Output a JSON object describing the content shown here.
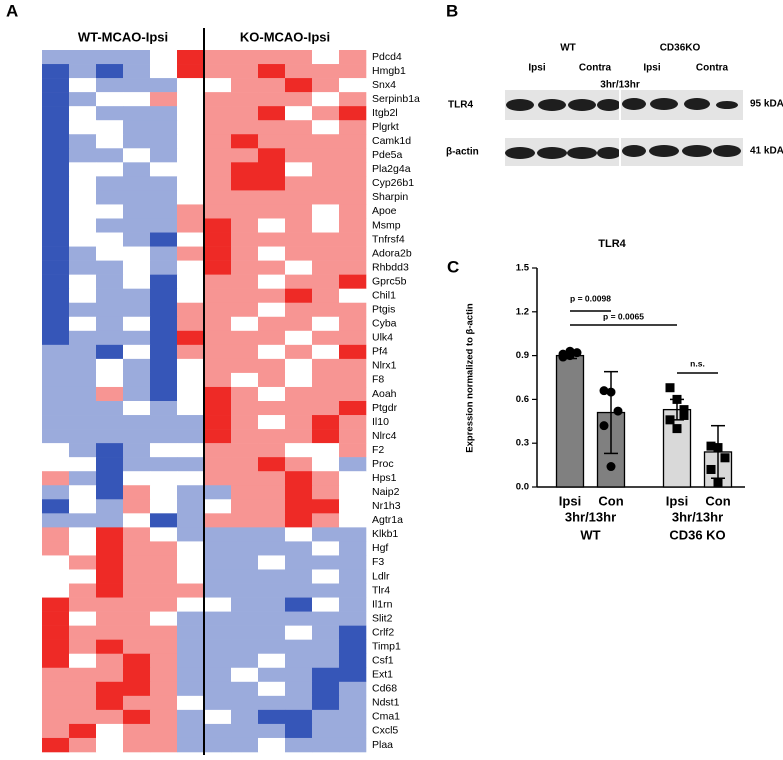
{
  "panels": {
    "a": "A",
    "b": "B",
    "c": "C"
  },
  "blot": {
    "groups": [
      "WT",
      "CD36KO"
    ],
    "lanes": [
      "Ipsi",
      "Contra",
      "Ipsi",
      "Contra"
    ],
    "time": "3hr/13hr",
    "rows": [
      {
        "name": "TLR4",
        "size": "95 kDA"
      },
      {
        "name": "β-actin",
        "size": "41 kDA"
      }
    ]
  },
  "chart_data": [
    {
      "type": "heatmap",
      "column_groups": [
        "WT-MCAO-Ipsi",
        "KO-MCAO-Ipsi"
      ],
      "zlim": [
        -2,
        2
      ],
      "colors": {
        "low": "#3656b8",
        "mid": "#ffffff",
        "high": "#ee2a26"
      },
      "rows": [
        "Pdcd4",
        "Hmgb1",
        "Snx4",
        "Serpinb1a",
        "Itgb2l",
        "Plgrkt",
        "Camk1d",
        "Pde5a",
        "Pla2g4a",
        "Cyp26b1",
        "Sharpin",
        "Apoe",
        "Msmp",
        "Tnfrsf4",
        "Adora2b",
        "Rhbdd3",
        "Gprc5b",
        "Chil1",
        "Ptgis",
        "Cyba",
        "Ulk4",
        "Pf4",
        "Nlrx1",
        "F8",
        "Aoah",
        "Ptgdr",
        "Il10",
        "Nlrc4",
        "F2",
        "Proc",
        "Hps1",
        "Naip2",
        "Nr1h3",
        "Agtr1a",
        "Klkb1",
        "Hgf",
        "F3",
        "Ldlr",
        "Tlr4",
        "Il1rn",
        "Slit2",
        "Crlf2",
        "Timp1",
        "Csf1",
        "Ext1",
        "Cd68",
        "Ndst1",
        "Cma1",
        "Cxcl5",
        "Plaa"
      ],
      "values": [
        [
          -1,
          -1,
          -1,
          -1,
          0,
          2,
          1,
          1,
          1,
          1,
          0,
          1
        ],
        [
          -2,
          -1,
          -2,
          -1,
          0,
          2,
          1,
          1,
          2,
          1,
          1,
          1
        ],
        [
          -2,
          0,
          -1,
          -1,
          -1,
          0,
          0,
          1,
          1,
          2,
          1,
          0
        ],
        [
          -2,
          -1,
          0,
          0,
          1,
          0,
          1,
          1,
          1,
          1,
          0,
          1
        ],
        [
          -2,
          0,
          -1,
          -1,
          -1,
          0,
          1,
          1,
          2,
          0,
          1,
          2
        ],
        [
          -2,
          0,
          0,
          -1,
          -1,
          0,
          1,
          1,
          1,
          1,
          0,
          1
        ],
        [
          -2,
          -1,
          0,
          -1,
          -1,
          0,
          1,
          2,
          1,
          1,
          1,
          1
        ],
        [
          -2,
          -1,
          -1,
          0,
          -1,
          0,
          1,
          1,
          2,
          1,
          1,
          1
        ],
        [
          -2,
          0,
          0,
          -1,
          0,
          0,
          1,
          2,
          2,
          0,
          1,
          1
        ],
        [
          -2,
          0,
          -1,
          -1,
          -1,
          0,
          1,
          2,
          2,
          1,
          1,
          1
        ],
        [
          -2,
          0,
          -1,
          -1,
          -1,
          0,
          1,
          1,
          1,
          1,
          1,
          1
        ],
        [
          -2,
          0,
          0,
          -1,
          -1,
          1,
          1,
          1,
          1,
          1,
          0,
          1
        ],
        [
          -2,
          0,
          -1,
          -1,
          -1,
          1,
          2,
          1,
          0,
          1,
          0,
          1
        ],
        [
          -2,
          0,
          0,
          -1,
          -2,
          0,
          2,
          1,
          1,
          1,
          1,
          1
        ],
        [
          -2,
          -1,
          0,
          0,
          -1,
          1,
          2,
          1,
          0,
          1,
          1,
          1
        ],
        [
          -2,
          -1,
          -1,
          0,
          -1,
          0,
          2,
          1,
          1,
          0,
          1,
          1
        ],
        [
          -2,
          0,
          -1,
          0,
          -2,
          0,
          1,
          1,
          0,
          1,
          1,
          2
        ],
        [
          -2,
          0,
          -1,
          -1,
          -2,
          0,
          1,
          1,
          1,
          2,
          1,
          0
        ],
        [
          -2,
          -1,
          -1,
          -1,
          -2,
          1,
          1,
          1,
          0,
          1,
          1,
          1
        ],
        [
          -2,
          0,
          -1,
          0,
          -2,
          1,
          1,
          0,
          1,
          1,
          0,
          1
        ],
        [
          -2,
          -1,
          -1,
          -1,
          -2,
          2,
          1,
          1,
          1,
          0,
          1,
          1
        ],
        [
          -1,
          -1,
          -2,
          0,
          -2,
          1,
          1,
          1,
          0,
          1,
          0,
          2
        ],
        [
          -1,
          -1,
          0,
          -1,
          -2,
          0,
          1,
          1,
          1,
          0,
          1,
          1
        ],
        [
          -1,
          -1,
          0,
          -1,
          -2,
          0,
          1,
          0,
          1,
          0,
          1,
          1
        ],
        [
          -1,
          -1,
          1,
          -1,
          -2,
          0,
          2,
          1,
          0,
          1,
          1,
          1
        ],
        [
          -1,
          -1,
          -1,
          0,
          -1,
          0,
          2,
          1,
          1,
          1,
          1,
          2
        ],
        [
          -1,
          -1,
          -1,
          -1,
          -1,
          -1,
          2,
          1,
          0,
          1,
          2,
          1
        ],
        [
          -1,
          -1,
          -1,
          -1,
          -1,
          -1,
          2,
          1,
          1,
          1,
          2,
          1
        ],
        [
          0,
          -1,
          -2,
          -1,
          0,
          0,
          1,
          1,
          1,
          0,
          0,
          1
        ],
        [
          0,
          0,
          -2,
          -1,
          -1,
          -1,
          1,
          1,
          2,
          1,
          0,
          -1
        ],
        [
          1,
          -1,
          -2,
          0,
          0,
          0,
          1,
          1,
          1,
          2,
          1,
          0
        ],
        [
          -1,
          0,
          -2,
          1,
          0,
          -1,
          -1,
          1,
          1,
          2,
          1,
          0
        ],
        [
          -2,
          0,
          -1,
          1,
          0,
          -1,
          0,
          1,
          1,
          2,
          2,
          0
        ],
        [
          -1,
          -1,
          -1,
          0,
          -2,
          -1,
          1,
          1,
          1,
          2,
          1,
          0
        ],
        [
          1,
          0,
          2,
          1,
          0,
          -1,
          -1,
          -1,
          -1,
          0,
          -1,
          -1
        ],
        [
          1,
          0,
          2,
          1,
          1,
          0,
          -1,
          -1,
          -1,
          -1,
          0,
          -1
        ],
        [
          0,
          1,
          2,
          1,
          1,
          0,
          -1,
          -1,
          0,
          -1,
          -1,
          -1
        ],
        [
          0,
          0,
          2,
          1,
          1,
          0,
          -1,
          -1,
          -1,
          -1,
          0,
          -1
        ],
        [
          0,
          1,
          2,
          1,
          1,
          1,
          -1,
          -1,
          -1,
          -1,
          -1,
          -1
        ],
        [
          2,
          1,
          1,
          1,
          1,
          0,
          0,
          -1,
          -1,
          -2,
          0,
          -1
        ],
        [
          2,
          0,
          1,
          1,
          0,
          -1,
          -1,
          -1,
          -1,
          -1,
          -1,
          -1
        ],
        [
          2,
          1,
          1,
          1,
          1,
          -1,
          -1,
          -1,
          -1,
          0,
          -1,
          -2
        ],
        [
          2,
          1,
          2,
          1,
          1,
          -1,
          -1,
          -1,
          -1,
          -1,
          -1,
          -2
        ],
        [
          2,
          0,
          1,
          2,
          1,
          -1,
          -1,
          -1,
          0,
          -1,
          -1,
          -2
        ],
        [
          1,
          1,
          1,
          2,
          1,
          -1,
          -1,
          0,
          -1,
          -1,
          -2,
          -2
        ],
        [
          1,
          1,
          2,
          2,
          1,
          -1,
          -1,
          -1,
          0,
          -1,
          -2,
          -1
        ],
        [
          1,
          1,
          2,
          1,
          1,
          0,
          -1,
          -1,
          -1,
          -1,
          -2,
          -1
        ],
        [
          1,
          1,
          1,
          2,
          1,
          -1,
          0,
          -1,
          -2,
          -2,
          -1,
          -1
        ],
        [
          1,
          2,
          0,
          1,
          1,
          -1,
          -1,
          -1,
          -1,
          -2,
          -1,
          -1
        ],
        [
          2,
          1,
          0,
          1,
          1,
          -1,
          -1,
          -1,
          0,
          -1,
          -1,
          -1
        ]
      ]
    },
    {
      "type": "bar",
      "title": "TLR4",
      "y_label": "Expression normalized to β-actin",
      "categories": [
        "Ipsi",
        "Con",
        "Ipsi",
        "Con"
      ],
      "groups": [
        {
          "name": "WT",
          "label": "3hr/13hr"
        },
        {
          "name": "CD36 KO",
          "label": "3hr/13hr"
        }
      ],
      "values": [
        0.9,
        0.51,
        0.53,
        0.24
      ],
      "errors": [
        0.02,
        0.28,
        0.07,
        0.18
      ],
      "colors": [
        "#808080",
        "#808080",
        "#d9d9d9",
        "#d9d9d9"
      ],
      "points": [
        [
          0.91,
          0.93,
          0.92,
          0.89,
          0.9
        ],
        [
          0.66,
          0.65,
          0.52,
          0.42,
          0.14
        ],
        [
          0.68,
          0.6,
          0.49,
          0.46,
          0.4,
          0.53
        ],
        [
          0.28,
          0.27,
          0.2,
          0.12,
          0.03
        ]
      ],
      "annotations": [
        "p = 0.0098",
        "p = 0.0065",
        "n.s."
      ],
      "ylim": [
        0,
        1.5
      ],
      "yticks": [
        {
          "value": 0,
          "label": "0.0"
        },
        0.3,
        0.6,
        0.9,
        1.2,
        1.5
      ]
    }
  ]
}
